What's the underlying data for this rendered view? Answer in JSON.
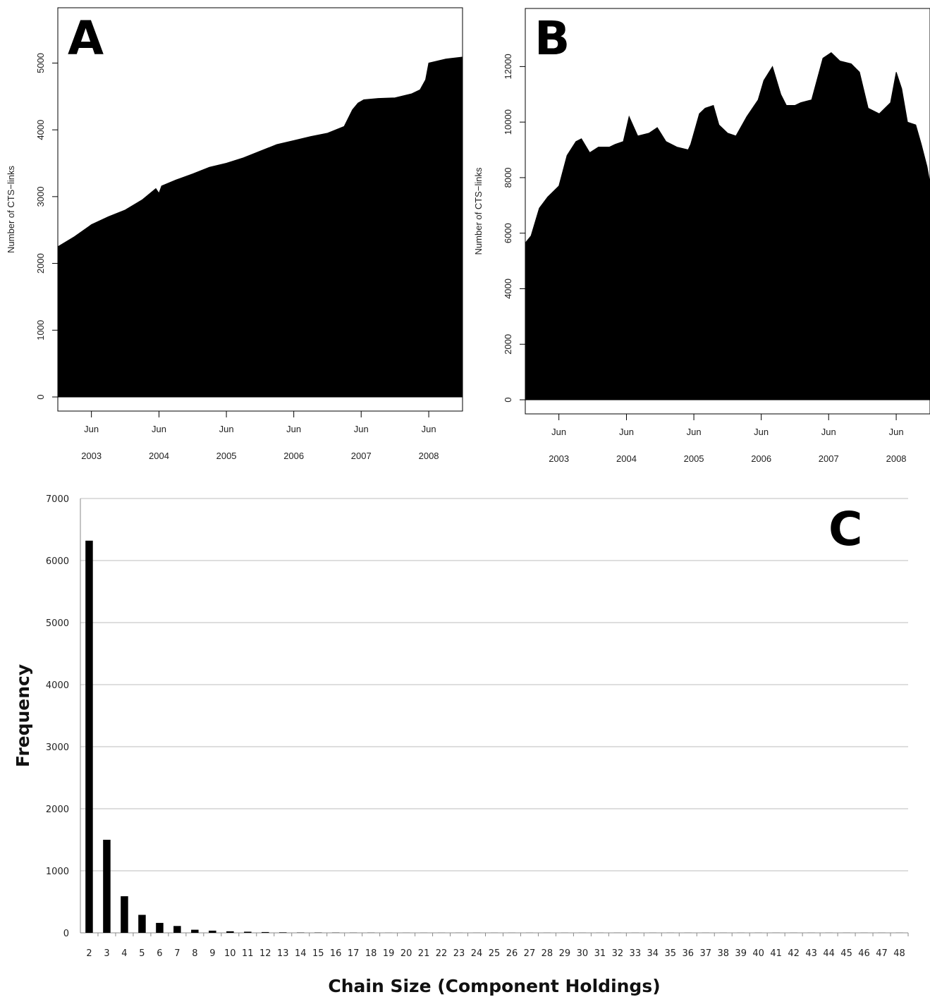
{
  "chart_data": [
    {
      "type": "area",
      "panel_label": "A",
      "ylabel": "Number of CTS−links",
      "xlabel": "",
      "xlim": [
        "2002-12-01",
        "2008-12-01"
      ],
      "ylim": [
        0,
        5300
      ],
      "yticks": [
        0,
        1000,
        2000,
        3000,
        4000,
        5000
      ],
      "xticks": [
        {
          "date": "2003-06-01",
          "label_top": "Jun",
          "label_bottom": "2003"
        },
        {
          "date": "2004-06-01",
          "label_top": "Jun",
          "label_bottom": "2004"
        },
        {
          "date": "2005-06-01",
          "label_top": "Jun",
          "label_bottom": "2005"
        },
        {
          "date": "2006-06-01",
          "label_top": "Jun",
          "label_bottom": "2006"
        },
        {
          "date": "2007-06-01",
          "label_top": "Jun",
          "label_bottom": "2007"
        },
        {
          "date": "2008-06-01",
          "label_top": "Jun",
          "label_bottom": "2008"
        }
      ],
      "x": [
        "2002-12-01",
        "2003-03-01",
        "2003-06-01",
        "2003-09-01",
        "2003-12-01",
        "2004-03-01",
        "2004-05-15",
        "2004-06-01",
        "2004-06-15",
        "2004-09-01",
        "2004-12-01",
        "2005-03-01",
        "2005-06-01",
        "2005-09-01",
        "2005-12-01",
        "2006-03-01",
        "2006-06-01",
        "2006-09-01",
        "2006-12-01",
        "2007-03-01",
        "2007-04-15",
        "2007-05-15",
        "2007-06-15",
        "2007-09-01",
        "2007-12-01",
        "2008-03-01",
        "2008-04-15",
        "2008-05-15",
        "2008-06-01",
        "2008-09-01",
        "2008-12-01"
      ],
      "y": [
        2250,
        2400,
        2580,
        2700,
        2800,
        2950,
        3120,
        3050,
        3160,
        3250,
        3340,
        3440,
        3500,
        3580,
        3680,
        3780,
        3840,
        3900,
        3950,
        4050,
        4300,
        4400,
        4450,
        4470,
        4480,
        4540,
        4600,
        4750,
        5000,
        5060,
        5090
      ]
    },
    {
      "type": "area",
      "panel_label": "B",
      "ylabel": "Number of CTS−links",
      "xlabel": "",
      "xlim": [
        "2002-12-01",
        "2008-12-01"
      ],
      "ylim": [
        0,
        13000
      ],
      "yticks": [
        0,
        2000,
        4000,
        6000,
        8000,
        10000,
        12000
      ],
      "xticks": [
        {
          "date": "2003-06-01",
          "label_top": "Jun",
          "label_bottom": "2003"
        },
        {
          "date": "2004-06-01",
          "label_top": "Jun",
          "label_bottom": "2004"
        },
        {
          "date": "2005-06-01",
          "label_top": "Jun",
          "label_bottom": "2005"
        },
        {
          "date": "2006-06-01",
          "label_top": "Jun",
          "label_bottom": "2006"
        },
        {
          "date": "2007-06-01",
          "label_top": "Jun",
          "label_bottom": "2007"
        },
        {
          "date": "2008-06-01",
          "label_top": "Jun",
          "label_bottom": "2008"
        }
      ],
      "x": [
        "2002-12-01",
        "2003-01-01",
        "2003-02-15",
        "2003-04-01",
        "2003-06-01",
        "2003-07-15",
        "2003-09-01",
        "2003-10-01",
        "2003-11-15",
        "2004-01-01",
        "2004-03-01",
        "2004-04-01",
        "2004-05-15",
        "2004-06-15",
        "2004-08-01",
        "2004-10-01",
        "2004-11-15",
        "2005-01-01",
        "2005-03-01",
        "2005-05-01",
        "2005-05-15",
        "2005-07-01",
        "2005-08-01",
        "2005-09-15",
        "2005-10-15",
        "2005-12-01",
        "2006-01-15",
        "2006-03-15",
        "2006-05-15",
        "2006-06-15",
        "2006-08-01",
        "2006-09-15",
        "2006-10-15",
        "2006-12-01",
        "2007-01-01",
        "2007-03-01",
        "2007-05-01",
        "2007-06-15",
        "2007-08-01",
        "2007-10-01",
        "2007-11-15",
        "2008-01-01",
        "2008-03-01",
        "2008-05-01",
        "2008-06-01",
        "2008-07-01",
        "2008-08-01",
        "2008-09-15",
        "2008-10-15",
        "2008-11-15",
        "2008-12-01"
      ],
      "y": [
        5650,
        5900,
        6900,
        7300,
        7700,
        8800,
        9300,
        9400,
        8900,
        9100,
        9100,
        9200,
        9300,
        10200,
        9500,
        9600,
        9800,
        9300,
        9100,
        9000,
        9200,
        10300,
        10500,
        10600,
        9900,
        9600,
        9500,
        10200,
        10800,
        11500,
        12000,
        11000,
        10600,
        10600,
        10700,
        10800,
        12300,
        12500,
        12200,
        12100,
        11800,
        10500,
        10300,
        10700,
        11800,
        11200,
        10000,
        9900,
        9200,
        8400,
        7800
      ]
    },
    {
      "type": "bar",
      "panel_label": "C",
      "xlabel": "Chain Size (Component Holdings)",
      "ylabel": "Frequency",
      "ylim": [
        0,
        7000
      ],
      "yticks": [
        0,
        1000,
        2000,
        3000,
        4000,
        5000,
        6000,
        7000
      ],
      "grid": true,
      "categories": [
        "2",
        "3",
        "4",
        "5",
        "6",
        "7",
        "8",
        "9",
        "10",
        "11",
        "12",
        "13",
        "14",
        "15",
        "16",
        "17",
        "18",
        "19",
        "20",
        "21",
        "22",
        "23",
        "24",
        "25",
        "26",
        "27",
        "28",
        "29",
        "30",
        "31",
        "32",
        "33",
        "34",
        "35",
        "36",
        "37",
        "38",
        "39",
        "40",
        "41",
        "42",
        "43",
        "44",
        "45",
        "46",
        "47",
        "48"
      ],
      "values": [
        6320,
        1500,
        590,
        290,
        160,
        110,
        50,
        35,
        25,
        18,
        12,
        8,
        5,
        4,
        3,
        2,
        2,
        1,
        1,
        1,
        1,
        1,
        1,
        1,
        1,
        1,
        1,
        1,
        1,
        1,
        1,
        1,
        1,
        1,
        1,
        1,
        1,
        1,
        1,
        1,
        1,
        1,
        1,
        1,
        1,
        1,
        1
      ]
    }
  ]
}
